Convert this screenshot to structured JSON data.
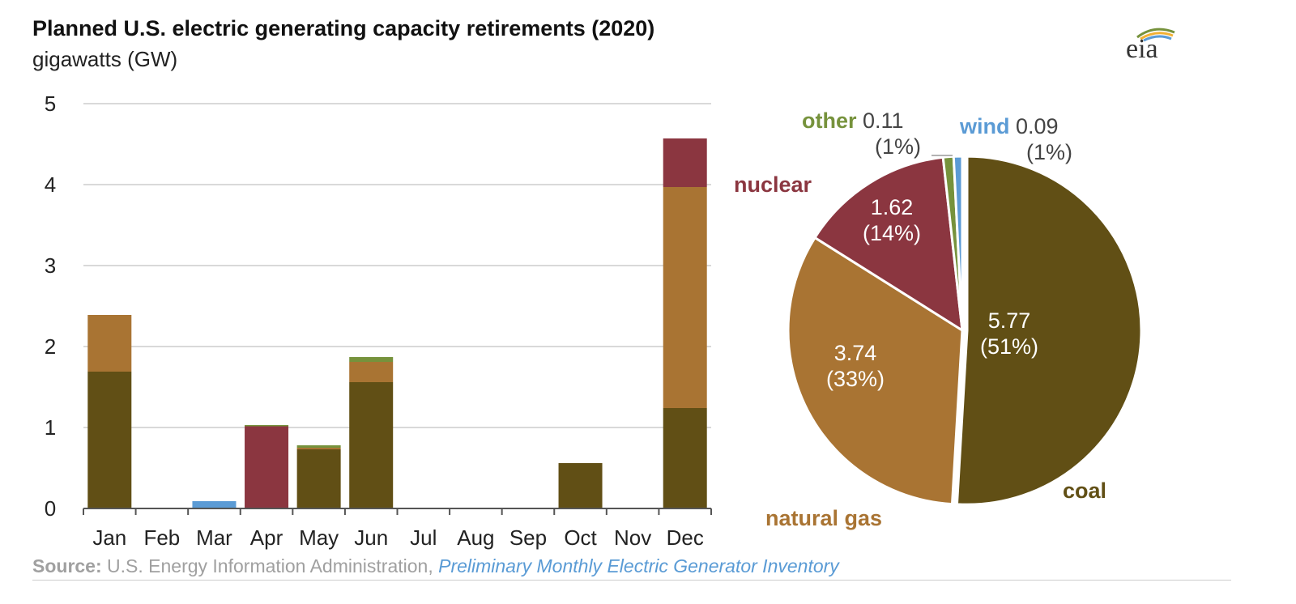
{
  "title": "Planned U.S. electric generating capacity retirements (2020)",
  "subtitle": "gigawatts (GW)",
  "logo": "eia",
  "source": {
    "label": "Source:",
    "text": " U.S. Energy Information Administration, ",
    "link": "Preliminary Monthly Electric Generator Inventory"
  },
  "colors": {
    "coal": "#614f15",
    "natural gas": "#a97433",
    "nuclear": "#8b3640",
    "other": "#76923c",
    "wind": "#5b9bd5"
  },
  "chart_data": [
    {
      "type": "bar",
      "stacked": true,
      "categories": [
        "Jan",
        "Feb",
        "Mar",
        "Apr",
        "May",
        "Jun",
        "Jul",
        "Aug",
        "Sep",
        "Oct",
        "Nov",
        "Dec"
      ],
      "series": [
        {
          "name": "coal",
          "values": [
            1.69,
            0,
            0,
            0,
            0.73,
            1.56,
            0,
            0,
            0,
            0.56,
            0,
            1.24
          ]
        },
        {
          "name": "natural gas",
          "values": [
            0.7,
            0,
            0,
            0,
            0.02,
            0.25,
            0,
            0.01,
            0,
            0,
            0,
            2.73
          ]
        },
        {
          "name": "nuclear",
          "values": [
            0,
            0,
            0,
            1.02,
            0,
            0,
            0,
            0,
            0,
            0,
            0,
            0.6
          ]
        },
        {
          "name": "other",
          "values": [
            0,
            0,
            0,
            0.01,
            0.03,
            0.06,
            0,
            0,
            0,
            0,
            0,
            0
          ]
        },
        {
          "name": "wind",
          "values": [
            0,
            0,
            0.09,
            0,
            0,
            0,
            0,
            0,
            0,
            0,
            0,
            0
          ]
        }
      ],
      "ylim": [
        0,
        5
      ],
      "yticks": [
        "0",
        "1",
        "2",
        "3",
        "4",
        "5"
      ],
      "grid": true
    },
    {
      "type": "pie",
      "slices": [
        {
          "name": "coal",
          "value": 5.77,
          "value_label": "5.77",
          "pct_label": "(51%)"
        },
        {
          "name": "natural gas",
          "value": 3.74,
          "value_label": "3.74",
          "pct_label": "(33%)"
        },
        {
          "name": "nuclear",
          "value": 1.62,
          "value_label": "1.62",
          "pct_label": "(14%)"
        },
        {
          "name": "other",
          "value": 0.11,
          "value_label": "0.11",
          "pct_label": "(1%)"
        },
        {
          "name": "wind",
          "value": 0.09,
          "value_label": "0.09",
          "pct_label": "(1%)"
        }
      ]
    }
  ]
}
